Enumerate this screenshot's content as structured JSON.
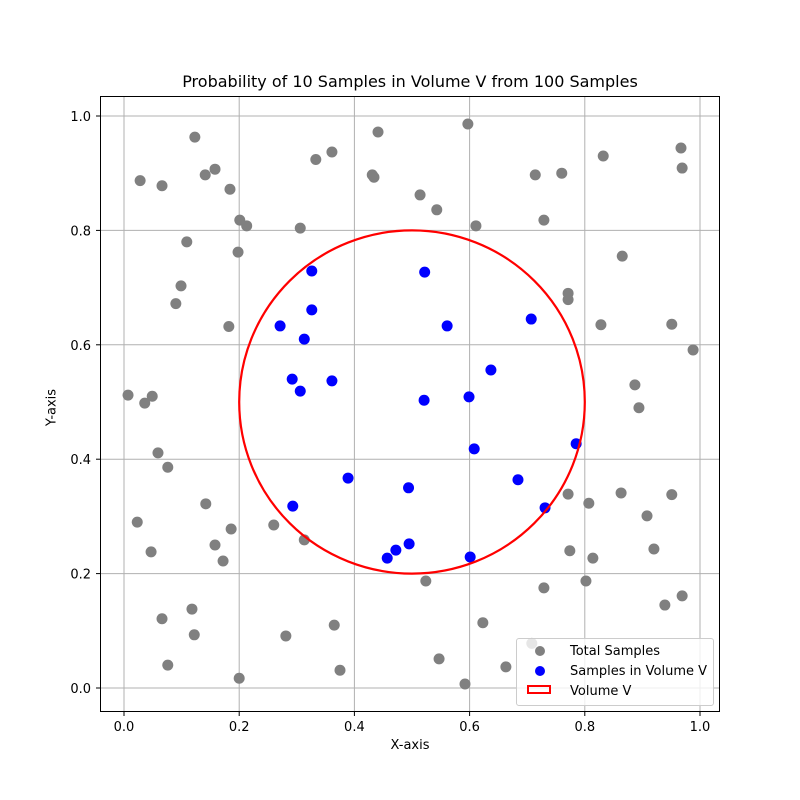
{
  "chart_data": {
    "type": "scatter",
    "title": "Probability of 10 Samples in Volume V from 100 Samples",
    "xlabel": "X-axis",
    "ylabel": "Y-axis",
    "xlim": [
      -0.04,
      1.035
    ],
    "ylim": [
      -0.04,
      1.035
    ],
    "xticks": [
      "0.0",
      "0.2",
      "0.4",
      "0.6",
      "0.8",
      "1.0"
    ],
    "yticks": [
      "0.0",
      "0.2",
      "0.4",
      "0.6",
      "0.8",
      "1.0"
    ],
    "grid": true,
    "legend_position": "lower right",
    "legend": [
      "Total Samples",
      "Samples in Volume V",
      "Volume V"
    ],
    "colors": {
      "total": "#808080",
      "inside": "#0000ff",
      "circle": "#ff0000",
      "grid": "#b0b0b0"
    },
    "circle": {
      "center": [
        0.5,
        0.5
      ],
      "radius": 0.3,
      "label": "Volume V"
    },
    "series": [
      {
        "name": "Total Samples",
        "points": [
          [
            0.123,
            0.963
          ],
          [
            0.028,
            0.887
          ],
          [
            0.066,
            0.878
          ],
          [
            0.141,
            0.897
          ],
          [
            0.158,
            0.907
          ],
          [
            0.184,
            0.872
          ],
          [
            0.201,
            0.818
          ],
          [
            0.213,
            0.808
          ],
          [
            0.109,
            0.78
          ],
          [
            0.198,
            0.762
          ],
          [
            0.099,
            0.703
          ],
          [
            0.09,
            0.672
          ],
          [
            0.182,
            0.632
          ],
          [
            0.306,
            0.804
          ],
          [
            0.333,
            0.924
          ],
          [
            0.361,
            0.937
          ],
          [
            0.431,
            0.897
          ],
          [
            0.434,
            0.893
          ],
          [
            0.441,
            0.972
          ],
          [
            0.514,
            0.862
          ],
          [
            0.543,
            0.836
          ],
          [
            0.597,
            0.986
          ],
          [
            0.611,
            0.808
          ],
          [
            0.714,
            0.897
          ],
          [
            0.76,
            0.9
          ],
          [
            0.729,
            0.818
          ],
          [
            0.771,
            0.69
          ],
          [
            0.771,
            0.679
          ],
          [
            0.832,
            0.93
          ],
          [
            0.967,
            0.944
          ],
          [
            0.969,
            0.909
          ],
          [
            0.865,
            0.755
          ],
          [
            0.828,
            0.635
          ],
          [
            0.951,
            0.636
          ],
          [
            0.988,
            0.591
          ],
          [
            0.887,
            0.53
          ],
          [
            0.894,
            0.49
          ],
          [
            0.007,
            0.512
          ],
          [
            0.036,
            0.498
          ],
          [
            0.049,
            0.51
          ],
          [
            0.059,
            0.411
          ],
          [
            0.076,
            0.386
          ],
          [
            0.142,
            0.322
          ],
          [
            0.023,
            0.29
          ],
          [
            0.047,
            0.238
          ],
          [
            0.158,
            0.25
          ],
          [
            0.172,
            0.222
          ],
          [
            0.186,
            0.278
          ],
          [
            0.26,
            0.285
          ],
          [
            0.313,
            0.259
          ],
          [
            0.118,
            0.138
          ],
          [
            0.066,
            0.121
          ],
          [
            0.122,
            0.093
          ],
          [
            0.076,
            0.04
          ],
          [
            0.2,
            0.017
          ],
          [
            0.281,
            0.091
          ],
          [
            0.365,
            0.11
          ],
          [
            0.375,
            0.031
          ],
          [
            0.524,
            0.187
          ],
          [
            0.547,
            0.051
          ],
          [
            0.592,
            0.007
          ],
          [
            0.623,
            0.114
          ],
          [
            0.663,
            0.037
          ],
          [
            0.708,
            0.078
          ],
          [
            0.729,
            0.175
          ],
          [
            0.771,
            0.339
          ],
          [
            0.774,
            0.24
          ],
          [
            0.807,
            0.323
          ],
          [
            0.814,
            0.227
          ],
          [
            0.802,
            0.187
          ],
          [
            0.863,
            0.341
          ],
          [
            0.908,
            0.301
          ],
          [
            0.92,
            0.243
          ],
          [
            0.939,
            0.145
          ],
          [
            0.969,
            0.161
          ],
          [
            0.951,
            0.338
          ]
        ]
      },
      {
        "name": "Samples in Volume V",
        "points": [
          [
            0.326,
            0.729
          ],
          [
            0.326,
            0.661
          ],
          [
            0.271,
            0.633
          ],
          [
            0.313,
            0.61
          ],
          [
            0.292,
            0.54
          ],
          [
            0.306,
            0.519
          ],
          [
            0.361,
            0.537
          ],
          [
            0.522,
            0.727
          ],
          [
            0.561,
            0.633
          ],
          [
            0.707,
            0.645
          ],
          [
            0.637,
            0.556
          ],
          [
            0.521,
            0.503
          ],
          [
            0.599,
            0.509
          ],
          [
            0.608,
            0.418
          ],
          [
            0.785,
            0.427
          ],
          [
            0.389,
            0.367
          ],
          [
            0.494,
            0.35
          ],
          [
            0.684,
            0.364
          ],
          [
            0.731,
            0.315
          ],
          [
            0.293,
            0.318
          ],
          [
            0.457,
            0.227
          ],
          [
            0.472,
            0.241
          ],
          [
            0.495,
            0.252
          ],
          [
            0.601,
            0.229
          ]
        ]
      }
    ]
  }
}
